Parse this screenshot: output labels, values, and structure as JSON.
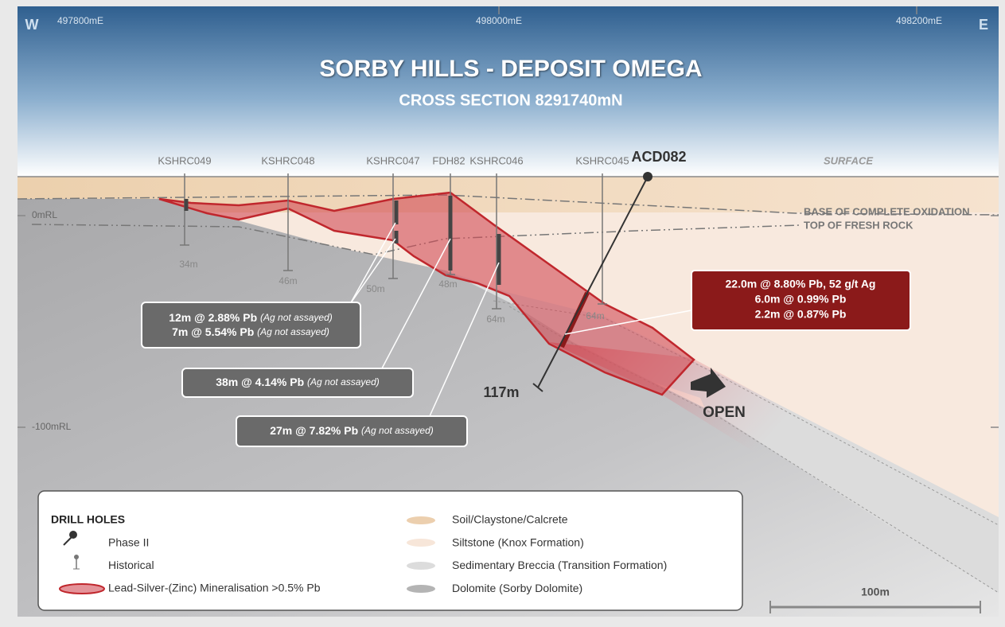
{
  "header": {
    "west": "W",
    "east": "E",
    "eastings": [
      "497800mE",
      "498000mE",
      "498200mE"
    ],
    "title": "SORBY HILLS - DEPOSIT OMEGA",
    "subtitle": "CROSS SECTION 8291740mN"
  },
  "labels": {
    "surface": "SURFACE",
    "base_oxidation": "BASE OF COMPLETE OXIDATION",
    "fresh_rock": "TOP OF FRESH ROCK",
    "rl": [
      "0mRL",
      "-100mRL"
    ],
    "open": "OPEN"
  },
  "drill_holes": [
    {
      "name": "KSHRC049",
      "depth": "34m"
    },
    {
      "name": "KSHRC048",
      "depth": "46m"
    },
    {
      "name": "KSHRC047",
      "depth": "50m"
    },
    {
      "name": "FDH82",
      "depth": "48m"
    },
    {
      "name": "KSHRC046",
      "depth": "64m"
    },
    {
      "name": "KSHRC045",
      "depth": "64m"
    }
  ],
  "phase2_hole": {
    "name": "ACD082",
    "depth": "117m"
  },
  "intercepts": [
    {
      "lines": [
        {
          "main": "12m @ 2.88% Pb",
          "note": "(Ag not assayed)"
        },
        {
          "main": "7m @ 5.54% Pb",
          "note": "(Ag not assayed)"
        }
      ]
    },
    {
      "lines": [
        {
          "main": "38m @ 4.14% Pb",
          "note": "(Ag not assayed)"
        }
      ]
    },
    {
      "lines": [
        {
          "main": "27m @ 7.82% Pb",
          "note": "(Ag not assayed)"
        }
      ]
    }
  ],
  "phase2_intercepts": [
    "22.0m @ 8.80% Pb, 52 g/t Ag",
    "6.0m @ 0.99% Pb",
    "2.2m @ 0.87% Pb"
  ],
  "legend": {
    "title": "DRILL HOLES",
    "items": [
      "Phase II",
      "Historical",
      "Lead-Silver-(Zinc) Mineralisation >0.5% Pb"
    ],
    "units": [
      "Soil/Claystone/Calcrete",
      "Siltstone (Knox Formation)",
      "Sedimentary Breccia (Transition Formation)",
      "Dolomite (Sorby Dolomite)"
    ]
  },
  "scale_bar": "100m"
}
